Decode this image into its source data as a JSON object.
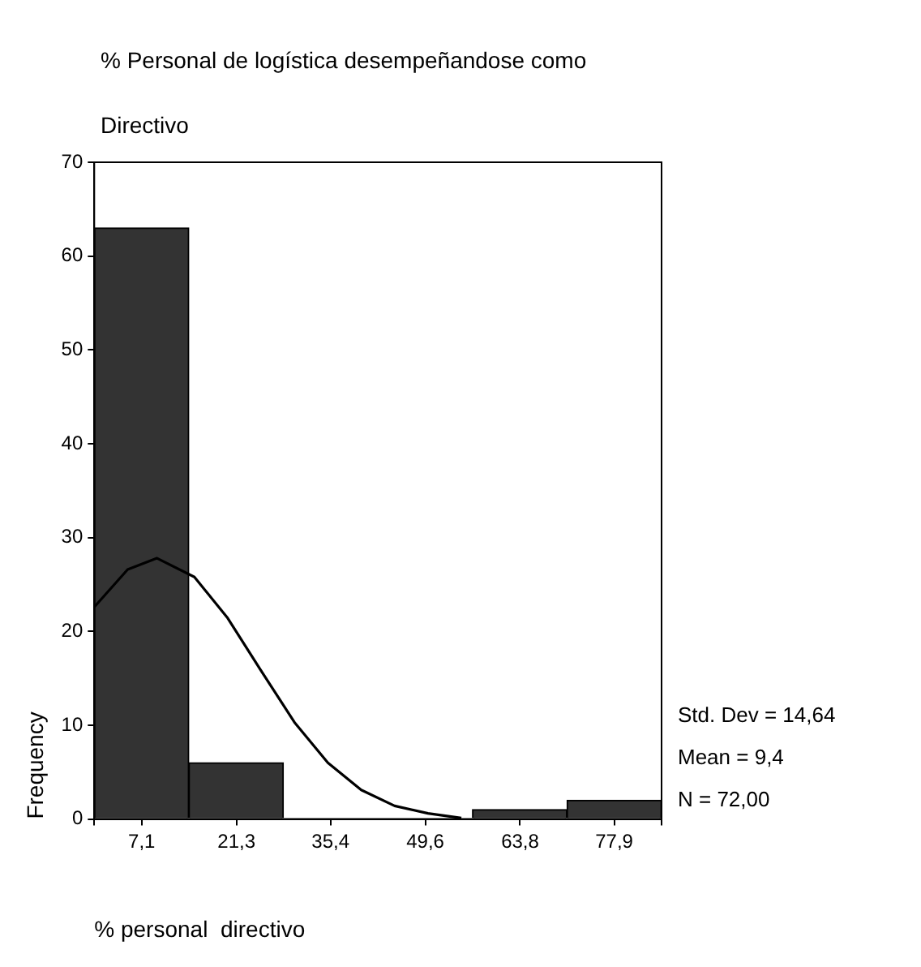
{
  "chart_data": {
    "type": "histogram",
    "title": "% Personal de logística desempeñandose como Directivo",
    "xlabel": "% personal  directivo",
    "ylabel": "Frequency",
    "bins": [
      0,
      14.17,
      28.33,
      42.5,
      56.67,
      70.83,
      85
    ],
    "values": [
      63,
      6,
      0,
      0,
      1,
      2
    ],
    "color": "#333333",
    "series": [
      {
        "type": "line",
        "x": [
          0,
          5,
          9.4,
          15,
          20,
          25,
          30,
          35,
          40,
          45,
          50,
          55
        ],
        "values": [
          22.6,
          26.6,
          27.8,
          25.8,
          21.4,
          15.8,
          10.3,
          6.0,
          3.1,
          1.4,
          0.6,
          0.1
        ],
        "color": "#000000"
      }
    ],
    "xlim": [
      0,
      85
    ],
    "ylim": [
      0,
      70
    ],
    "xticks": [
      {
        "value": 0,
        "label": null
      },
      {
        "value": 7.1,
        "label": "7,1"
      },
      {
        "value": 21.3,
        "label": "21,3"
      },
      {
        "value": 35.4,
        "label": "35,4"
      },
      {
        "value": 49.6,
        "label": "49,6"
      },
      {
        "value": 63.8,
        "label": "63,8"
      },
      {
        "value": 77.9,
        "label": "77,9"
      },
      {
        "value": 85,
        "label": null
      }
    ],
    "yticks": [
      0,
      10,
      20,
      30,
      40,
      50,
      60,
      70
    ],
    "grid": false,
    "legend": false,
    "marker": "none",
    "annotations": [
      "Std. Dev = 14,64",
      "Mean = 9,4",
      "N = 72,00"
    ]
  }
}
